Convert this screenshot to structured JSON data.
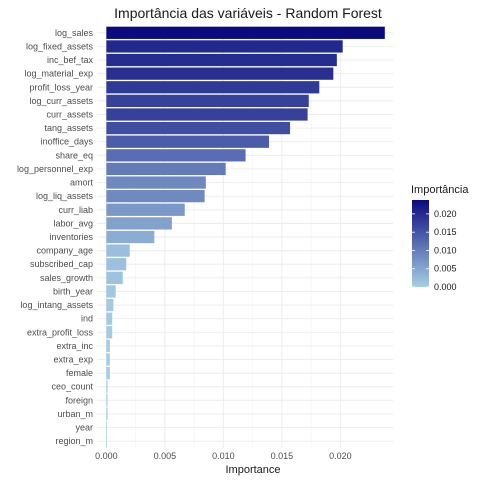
{
  "chart_data": {
    "type": "bar",
    "orientation": "horizontal",
    "title": "Importância das variáveis - Random Forest",
    "xlabel": "Importance",
    "ylabel": "",
    "xlim": [
      -0.0008,
      0.0245
    ],
    "x_ticks": [
      0.0,
      0.005,
      0.01,
      0.015,
      0.02
    ],
    "x_tick_labels": [
      "0.000",
      "0.005",
      "0.010",
      "0.015",
      "0.020"
    ],
    "grid": true,
    "legend": {
      "title": "Importância",
      "placement": "right",
      "ticks": [
        0.0,
        0.005,
        0.01,
        0.015,
        0.02
      ],
      "tick_labels": [
        "0.000",
        "0.005",
        "0.010",
        "0.015",
        "0.020"
      ],
      "range": [
        0,
        0.0238
      ],
      "color_low": "#a6cfe5",
      "color_high": "#0b0b7e"
    },
    "categories": [
      "log_sales",
      "log_fixed_assets",
      "inc_bef_tax",
      "log_material_exp",
      "profit_loss_year",
      "log_curr_assets",
      "curr_assets",
      "tang_assets",
      "inoffice_days",
      "share_eq",
      "log_personnel_exp",
      "amort",
      "log_liq_assets",
      "curr_liab",
      "labor_avg",
      "inventories",
      "company_age",
      "subscribed_cap",
      "sales_growth",
      "birth_year",
      "log_intang_assets",
      "ind",
      "extra_profit_loss",
      "extra_inc",
      "extra_exp",
      "female",
      "ceo_count",
      "foreign",
      "urban_m",
      "year",
      "region_m"
    ],
    "values": [
      0.0238,
      0.0202,
      0.0197,
      0.0194,
      0.0182,
      0.0173,
      0.0172,
      0.0157,
      0.0139,
      0.0119,
      0.0102,
      0.0085,
      0.0084,
      0.0067,
      0.0056,
      0.0041,
      0.002,
      0.0017,
      0.0014,
      0.0008,
      0.0006,
      0.0005,
      0.0005,
      0.0003,
      0.0003,
      0.0003,
      0.0001,
      0.0001,
      0.0001,
      5e-05,
      5e-05
    ]
  }
}
